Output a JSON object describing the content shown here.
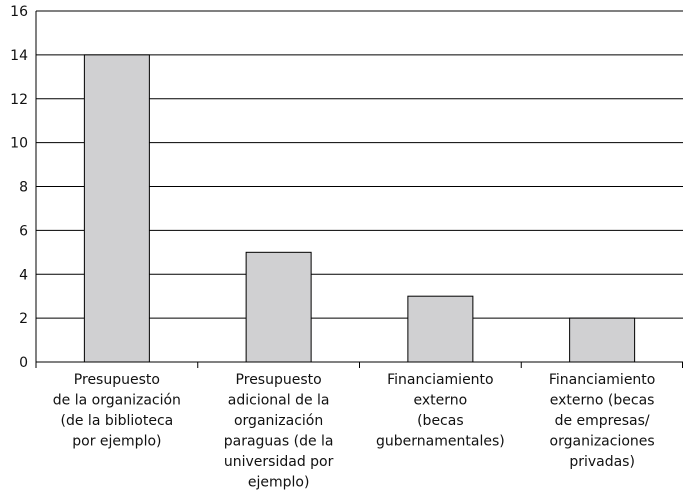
{
  "chart_data": {
    "type": "bar",
    "categories": [
      "Presupuesto\nde la organización\n(de la biblioteca\npor ejemplo)",
      "Presupuesto\nadicional de la\norganización\nparaguas (de la\nuniversidad por\nejemplo)",
      "Financiamiento\nexterno\n(becas\ngubernamentales)",
      "Financiamiento\nexterno (becas\nde empresas/\norganizaciones\nprivadas)"
    ],
    "values": [
      14,
      5,
      3,
      2
    ],
    "color": "#d0d0d2",
    "ylim": [
      0,
      16
    ],
    "yticks": [
      0,
      2,
      4,
      6,
      8,
      10,
      12,
      14,
      16
    ],
    "grid": true
  }
}
